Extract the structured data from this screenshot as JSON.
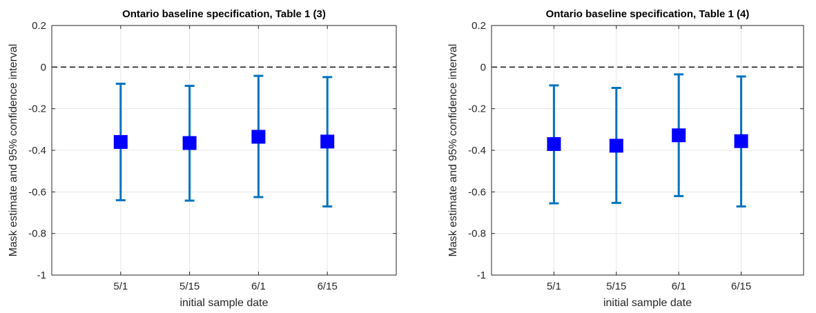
{
  "chart_data": [
    {
      "type": "scatter",
      "title": "Ontario baseline specification, Table 1 (3)",
      "xlabel": "initial sample date",
      "ylabel": "Mask estimate and 95% confidence interval",
      "categories": [
        "5/1",
        "5/15",
        "6/1",
        "6/15"
      ],
      "series": [
        {
          "values": [
            -0.36,
            -0.365,
            -0.335,
            -0.358
          ],
          "lower": [
            -0.64,
            -0.642,
            -0.625,
            -0.67
          ],
          "upper": [
            -0.08,
            -0.09,
            -0.042,
            -0.048
          ]
        }
      ],
      "ylim": [
        -1,
        0.2
      ],
      "yticks": [
        "0.2",
        "0",
        "-0.2",
        "-0.4",
        "-0.6",
        "-0.8",
        "-1"
      ],
      "reference_line": 0,
      "grid": true,
      "colors": {
        "marker": "#0000ff",
        "errorbar": "#0072bd",
        "grid": "#e6e6e6",
        "axis": "#262626"
      }
    },
    {
      "type": "scatter",
      "title": "Ontario baseline specification, Table 1 (4)",
      "xlabel": "initial sample date",
      "ylabel": "Mask estimate and 95% confidence interval",
      "categories": [
        "5/1",
        "5/15",
        "6/1",
        "6/15"
      ],
      "series": [
        {
          "values": [
            -0.37,
            -0.378,
            -0.328,
            -0.356
          ],
          "lower": [
            -0.655,
            -0.653,
            -0.62,
            -0.67
          ],
          "upper": [
            -0.088,
            -0.1,
            -0.035,
            -0.045
          ]
        }
      ],
      "ylim": [
        -1,
        0.2
      ],
      "yticks": [
        "0.2",
        "0",
        "-0.2",
        "-0.4",
        "-0.6",
        "-0.8",
        "-1"
      ],
      "reference_line": 0,
      "grid": true,
      "colors": {
        "marker": "#0000ff",
        "errorbar": "#0072bd",
        "grid": "#e6e6e6",
        "axis": "#262626"
      }
    }
  ]
}
